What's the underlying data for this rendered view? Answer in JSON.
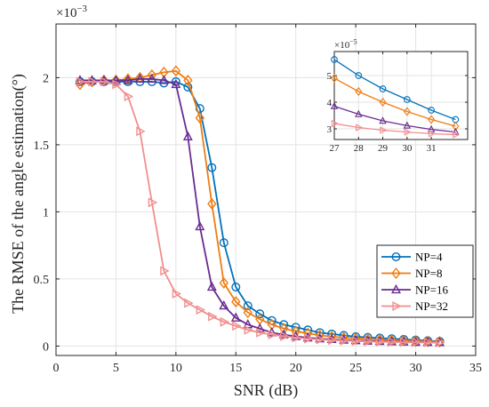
{
  "chart_data": [
    {
      "type": "line",
      "title": "",
      "xlabel": "SNR (dB)",
      "ylabel": "The RMSE of the angle estimation(°)",
      "y_multiplier": "×10",
      "y_exponent": "−3",
      "xlim": [
        0,
        35
      ],
      "ylim": [
        -0.07,
        2.4
      ],
      "xticks": [
        "0",
        "5",
        "10",
        "15",
        "20",
        "25",
        "30",
        "35"
      ],
      "yticks": [
        "0",
        "0.5",
        "1",
        "1.5",
        "2"
      ],
      "grid": true,
      "legend": "lower-right",
      "x": [
        2,
        3,
        4,
        5,
        6,
        7,
        8,
        9,
        10,
        11,
        12,
        13,
        14,
        15,
        16,
        17,
        18,
        19,
        20,
        21,
        22,
        23,
        24,
        25,
        26,
        27,
        28,
        29,
        30,
        31,
        32
      ],
      "series": [
        {
          "name": "NP=4",
          "color": "#0072BD",
          "marker": "circle",
          "values": [
            1.97,
            1.97,
            1.97,
            1.97,
            1.97,
            1.97,
            1.97,
            1.96,
            1.97,
            1.93,
            1.77,
            1.33,
            0.77,
            0.44,
            0.3,
            0.24,
            0.19,
            0.16,
            0.14,
            0.12,
            0.1,
            0.09,
            0.08,
            0.07,
            0.065,
            0.06,
            0.055,
            0.05,
            0.045,
            0.04,
            0.035
          ]
        },
        {
          "name": "NP=8",
          "color": "#EE7D12",
          "marker": "diamond",
          "values": [
            1.95,
            1.97,
            1.98,
            1.98,
            1.99,
            2.0,
            2.02,
            2.04,
            2.05,
            1.98,
            1.7,
            1.06,
            0.47,
            0.33,
            0.25,
            0.2,
            0.16,
            0.13,
            0.11,
            0.095,
            0.08,
            0.07,
            0.063,
            0.057,
            0.052,
            0.048,
            0.044,
            0.04,
            0.037,
            0.034,
            0.032
          ]
        },
        {
          "name": "NP=16",
          "color": "#6A2C91",
          "marker": "triangle-up",
          "values": [
            1.98,
            1.98,
            1.98,
            1.98,
            1.98,
            1.99,
            1.99,
            1.98,
            1.95,
            1.56,
            0.89,
            0.44,
            0.3,
            0.21,
            0.16,
            0.13,
            0.1,
            0.085,
            0.072,
            0.062,
            0.055,
            0.05,
            0.045,
            0.041,
            0.038,
            0.035,
            0.033,
            0.031,
            0.029,
            0.028,
            0.027
          ]
        },
        {
          "name": "NP=32",
          "color": "#F28E8E",
          "marker": "triangle-right",
          "values": [
            1.97,
            1.97,
            1.97,
            1.95,
            1.86,
            1.6,
            1.07,
            0.56,
            0.39,
            0.32,
            0.27,
            0.22,
            0.18,
            0.15,
            0.12,
            0.1,
            0.085,
            0.073,
            0.063,
            0.055,
            0.049,
            0.044,
            0.04,
            0.037,
            0.034,
            0.032,
            0.03,
            0.029,
            0.028,
            0.027,
            0.026
          ]
        }
      ]
    },
    {
      "type": "line",
      "title": "",
      "xlabel": "",
      "ylabel": "",
      "y_multiplier": "×10",
      "y_exponent": "−5",
      "xlim": [
        27,
        32.5
      ],
      "ylim": [
        2.6,
        5.9
      ],
      "xticks": [
        "27",
        "28",
        "29",
        "30",
        "31"
      ],
      "yticks": [
        "3",
        "4",
        "5"
      ],
      "grid": true,
      "x": [
        27,
        28,
        29,
        30,
        31,
        32
      ],
      "series": [
        {
          "name": "NP=4",
          "values": [
            5.6,
            5.0,
            4.5,
            4.1,
            3.7,
            3.35
          ]
        },
        {
          "name": "NP=8",
          "values": [
            4.9,
            4.4,
            4.0,
            3.65,
            3.35,
            3.1
          ]
        },
        {
          "name": "NP=16",
          "values": [
            3.85,
            3.55,
            3.3,
            3.12,
            2.98,
            2.88
          ]
        },
        {
          "name": "NP=32",
          "values": [
            3.2,
            3.05,
            2.95,
            2.88,
            2.82,
            2.78
          ]
        }
      ]
    }
  ]
}
